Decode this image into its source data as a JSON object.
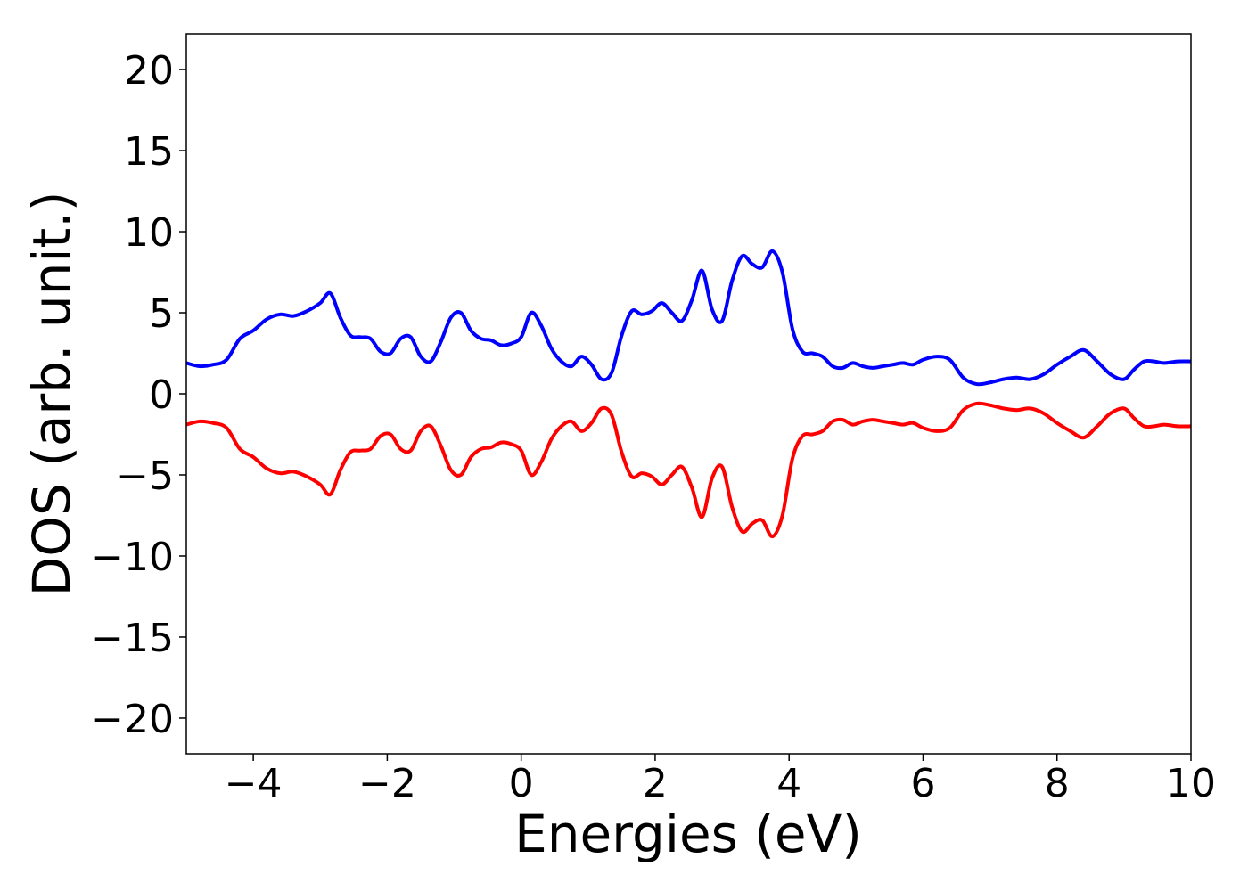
{
  "chart_data": {
    "type": "line",
    "title": "",
    "xlabel": "Energies (eV)",
    "ylabel": "DOS (arb. unit.)",
    "xlim": [
      -5,
      10
    ],
    "ylim": [
      -22.2,
      22.2
    ],
    "xticks": [
      -4,
      -2,
      0,
      2,
      4,
      6,
      8,
      10
    ],
    "xtick_labels": [
      "−4",
      "−2",
      "0",
      "2",
      "4",
      "6",
      "8",
      "10"
    ],
    "yticks": [
      20,
      15,
      10,
      5,
      0,
      -5,
      -10,
      -15,
      -20
    ],
    "ytick_labels": [
      "20",
      "15",
      "10",
      "5",
      "0",
      "−5",
      "−10",
      "−15",
      "−20"
    ],
    "grid": false,
    "series": [
      {
        "color": "#0000ff",
        "x": [
          -5.0,
          -4.8,
          -4.6,
          -4.4,
          -4.2,
          -4.0,
          -3.8,
          -3.6,
          -3.4,
          -3.2,
          -3.0,
          -2.85,
          -2.7,
          -2.55,
          -2.4,
          -2.25,
          -2.1,
          -1.95,
          -1.8,
          -1.65,
          -1.5,
          -1.35,
          -1.2,
          -1.05,
          -0.9,
          -0.75,
          -0.6,
          -0.45,
          -0.3,
          -0.15,
          0.0,
          0.15,
          0.3,
          0.45,
          0.6,
          0.75,
          0.9,
          1.05,
          1.2,
          1.35,
          1.5,
          1.65,
          1.8,
          1.95,
          2.1,
          2.25,
          2.4,
          2.55,
          2.7,
          2.85,
          3.0,
          3.15,
          3.3,
          3.45,
          3.6,
          3.75,
          3.9,
          4.05,
          4.2,
          4.35,
          4.5,
          4.65,
          4.8,
          4.95,
          5.1,
          5.25,
          5.4,
          5.55,
          5.7,
          5.85,
          6.0,
          6.2,
          6.4,
          6.6,
          6.8,
          7.0,
          7.2,
          7.4,
          7.6,
          7.8,
          8.0,
          8.2,
          8.4,
          8.6,
          8.8,
          9.0,
          9.15,
          9.3,
          9.45,
          9.6,
          9.8,
          10.0
        ],
        "y": [
          1.9,
          1.7,
          1.8,
          2.1,
          3.4,
          3.9,
          4.6,
          4.9,
          4.8,
          5.1,
          5.6,
          6.2,
          4.7,
          3.6,
          3.5,
          3.4,
          2.6,
          2.5,
          3.4,
          3.5,
          2.3,
          2.0,
          3.2,
          4.7,
          5.0,
          3.9,
          3.4,
          3.3,
          3.0,
          3.1,
          3.5,
          5.0,
          4.2,
          2.8,
          2.0,
          1.7,
          2.3,
          1.8,
          0.9,
          1.3,
          3.6,
          5.1,
          4.9,
          5.1,
          5.6,
          5.0,
          4.5,
          5.8,
          7.6,
          5.2,
          4.5,
          7.0,
          8.5,
          8.0,
          7.8,
          8.8,
          7.5,
          4.0,
          2.6,
          2.5,
          2.3,
          1.7,
          1.6,
          1.9,
          1.7,
          1.6,
          1.7,
          1.8,
          1.9,
          1.8,
          2.1,
          2.3,
          2.1,
          1.0,
          0.6,
          0.7,
          0.9,
          1.0,
          0.9,
          1.2,
          1.8,
          2.3,
          2.7,
          2.0,
          1.2,
          0.9,
          1.5,
          2.0,
          2.0,
          1.9,
          2.0,
          2.0
        ]
      },
      {
        "color": "#ff0000",
        "x": [
          -5.0,
          -4.8,
          -4.6,
          -4.4,
          -4.2,
          -4.0,
          -3.8,
          -3.6,
          -3.4,
          -3.2,
          -3.0,
          -2.85,
          -2.7,
          -2.55,
          -2.4,
          -2.25,
          -2.1,
          -1.95,
          -1.8,
          -1.65,
          -1.5,
          -1.35,
          -1.2,
          -1.05,
          -0.9,
          -0.75,
          -0.6,
          -0.45,
          -0.3,
          -0.15,
          0.0,
          0.15,
          0.3,
          0.45,
          0.6,
          0.75,
          0.9,
          1.05,
          1.2,
          1.35,
          1.5,
          1.65,
          1.8,
          1.95,
          2.1,
          2.25,
          2.4,
          2.55,
          2.7,
          2.85,
          3.0,
          3.15,
          3.3,
          3.45,
          3.6,
          3.75,
          3.9,
          4.05,
          4.2,
          4.35,
          4.5,
          4.65,
          4.8,
          4.95,
          5.1,
          5.25,
          5.4,
          5.55,
          5.7,
          5.85,
          6.0,
          6.2,
          6.4,
          6.6,
          6.8,
          7.0,
          7.2,
          7.4,
          7.6,
          7.8,
          8.0,
          8.2,
          8.4,
          8.6,
          8.8,
          9.0,
          9.15,
          9.3,
          9.45,
          9.6,
          9.8,
          10.0
        ],
        "y": [
          -1.9,
          -1.7,
          -1.8,
          -2.1,
          -3.4,
          -3.9,
          -4.6,
          -4.9,
          -4.8,
          -5.1,
          -5.6,
          -6.2,
          -4.7,
          -3.6,
          -3.5,
          -3.4,
          -2.6,
          -2.5,
          -3.4,
          -3.5,
          -2.3,
          -2.0,
          -3.2,
          -4.7,
          -5.0,
          -3.9,
          -3.4,
          -3.3,
          -3.0,
          -3.1,
          -3.5,
          -5.0,
          -4.2,
          -2.8,
          -2.0,
          -1.7,
          -2.3,
          -1.8,
          -0.9,
          -1.3,
          -3.6,
          -5.1,
          -4.9,
          -5.1,
          -5.6,
          -5.0,
          -4.5,
          -5.8,
          -7.6,
          -5.2,
          -4.5,
          -7.0,
          -8.5,
          -8.0,
          -7.8,
          -8.8,
          -7.5,
          -4.0,
          -2.6,
          -2.5,
          -2.3,
          -1.7,
          -1.6,
          -1.9,
          -1.7,
          -1.6,
          -1.7,
          -1.8,
          -1.9,
          -1.8,
          -2.1,
          -2.3,
          -2.1,
          -1.0,
          -0.6,
          -0.7,
          -0.9,
          -1.0,
          -0.9,
          -1.2,
          -1.8,
          -2.3,
          -2.7,
          -2.0,
          -1.2,
          -0.9,
          -1.5,
          -2.0,
          -2.0,
          -1.9,
          -2.0,
          -2.0
        ]
      }
    ]
  }
}
